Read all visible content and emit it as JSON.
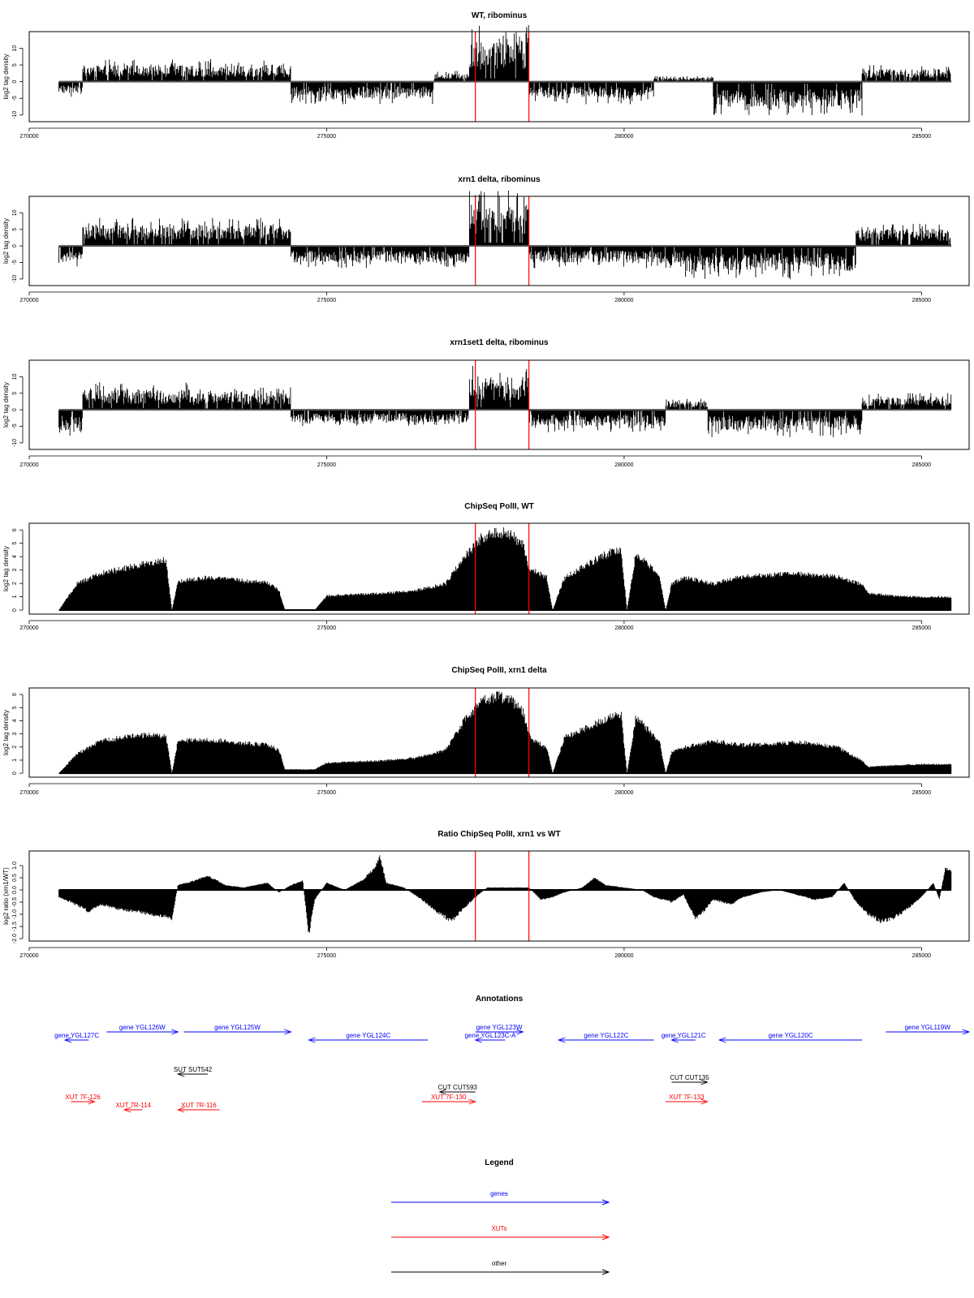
{
  "chart_data": [
    {
      "type": "bar",
      "title": "WT, ribominus",
      "ylabel": "log2 tag density",
      "xlim": [
        270000,
        285800
      ],
      "ylim": [
        -12,
        15
      ],
      "xticks": [
        "270000",
        "275000",
        "280000",
        "285000"
      ],
      "yticks": [
        "10",
        "5",
        "0",
        "-5",
        "-10"
      ],
      "markers": [
        277500,
        278400
      ],
      "segments": [
        {
          "x": [
            270500,
            270900
          ],
          "y": -3
        },
        {
          "x": [
            270900,
            272800
          ],
          "y": 4
        },
        {
          "x": [
            272800,
            274400
          ],
          "y": 4
        },
        {
          "x": [
            274400,
            276800
          ],
          "y": -4
        },
        {
          "x": [
            276800,
            277400
          ],
          "y": 2
        },
        {
          "x": [
            277400,
            278400
          ],
          "y": 10
        },
        {
          "x": [
            278400,
            280500
          ],
          "y": -4
        },
        {
          "x": [
            280500,
            281500
          ],
          "y": 1
        },
        {
          "x": [
            281500,
            284000
          ],
          "y": -6
        },
        {
          "x": [
            284000,
            285500
          ],
          "y": 3
        }
      ]
    },
    {
      "type": "bar",
      "title": "xrn1 delta, ribominus",
      "ylabel": "log2 tag density",
      "xlim": [
        270000,
        285800
      ],
      "ylim": [
        -12,
        15
      ],
      "xticks": [
        "270000",
        "275000",
        "280000",
        "285000"
      ],
      "yticks": [
        "10",
        "5",
        "0",
        "-5",
        "-10"
      ],
      "markers": [
        277500,
        278400
      ],
      "segments": [
        {
          "x": [
            270500,
            270900
          ],
          "y": -4
        },
        {
          "x": [
            270900,
            272700
          ],
          "y": 5
        },
        {
          "x": [
            272700,
            274400
          ],
          "y": 5
        },
        {
          "x": [
            274400,
            277400
          ],
          "y": -4
        },
        {
          "x": [
            277400,
            278400
          ],
          "y": 10
        },
        {
          "x": [
            278400,
            281000
          ],
          "y": -4
        },
        {
          "x": [
            281000,
            283900
          ],
          "y": -6
        },
        {
          "x": [
            283900,
            285500
          ],
          "y": 4
        }
      ]
    },
    {
      "type": "bar",
      "title": "xrn1set1 delta, ribominus",
      "ylabel": "log2 tag density",
      "xlim": [
        270000,
        285800
      ],
      "ylim": [
        -12,
        15
      ],
      "xticks": [
        "270000",
        "275000",
        "280000",
        "285000"
      ],
      "yticks": [
        "10",
        "5",
        "0",
        "-5",
        "-10"
      ],
      "markers": [
        277500,
        278400
      ],
      "segments": [
        {
          "x": [
            270500,
            270900
          ],
          "y": -5
        },
        {
          "x": [
            270900,
            272700
          ],
          "y": 5
        },
        {
          "x": [
            272700,
            274400
          ],
          "y": 4
        },
        {
          "x": [
            274400,
            277400
          ],
          "y": -3
        },
        {
          "x": [
            277400,
            278400
          ],
          "y": 8
        },
        {
          "x": [
            278400,
            280700
          ],
          "y": -4
        },
        {
          "x": [
            280700,
            281400
          ],
          "y": 2
        },
        {
          "x": [
            281400,
            284000
          ],
          "y": -5
        },
        {
          "x": [
            284000,
            285500
          ],
          "y": 3
        }
      ]
    },
    {
      "type": "area",
      "title": "ChipSeq PolII, WT",
      "ylabel": "log2 tag density",
      "xlim": [
        270000,
        285800
      ],
      "ylim": [
        -0.3,
        6.5
      ],
      "xticks": [
        "270000",
        "275000",
        "280000",
        "285000"
      ],
      "yticks": [
        "0",
        "1",
        "2",
        "3",
        "4",
        "5",
        "6"
      ],
      "markers": [
        277500,
        278400
      ],
      "x": [
        270500,
        270800,
        271200,
        271600,
        272000,
        272300,
        272400,
        272500,
        273000,
        273500,
        274000,
        274200,
        274300,
        274400,
        274800,
        275000,
        276000,
        276500,
        277000,
        277300,
        277600,
        277900,
        278100,
        278300,
        278400,
        278500,
        278700,
        278800,
        279000,
        279500,
        279800,
        279950,
        280050,
        280200,
        280400,
        280600,
        280700,
        280800,
        281000,
        281500,
        282000,
        283000,
        283600,
        284000,
        284100,
        284500,
        285000,
        285500
      ],
      "y": [
        0,
        2,
        2.8,
        3.2,
        3.6,
        3.8,
        0,
        2.2,
        2.5,
        2.3,
        2.1,
        1.5,
        0,
        0,
        0,
        1.1,
        1.3,
        1.5,
        2.0,
        4.0,
        5.5,
        6.0,
        5.8,
        5.0,
        3.2,
        3.0,
        2.5,
        0,
        2.5,
        3.8,
        4.5,
        4.6,
        0,
        4.4,
        3.5,
        2.5,
        0,
        2.0,
        2.5,
        2.0,
        2.6,
        2.8,
        2.5,
        2.0,
        1.3,
        1.1,
        1.0,
        1.0
      ]
    },
    {
      "type": "area",
      "title": "ChipSeq PolII, xrn1 delta",
      "ylabel": "log2 tag density",
      "xlim": [
        270000,
        285800
      ],
      "ylim": [
        -0.3,
        6.5
      ],
      "xticks": [
        "270000",
        "275000",
        "280000",
        "285000"
      ],
      "yticks": [
        "0",
        "1",
        "2",
        "3",
        "4",
        "5",
        "6"
      ],
      "markers": [
        277500,
        278400
      ],
      "x": [
        270500,
        270800,
        271200,
        271600,
        272000,
        272300,
        272400,
        272500,
        273000,
        273500,
        274000,
        274200,
        274300,
        274400,
        274800,
        275000,
        276000,
        276500,
        277000,
        277300,
        277600,
        277900,
        278100,
        278300,
        278400,
        278500,
        278700,
        278800,
        279000,
        279500,
        279800,
        279950,
        280050,
        280200,
        280400,
        280600,
        280700,
        280800,
        281000,
        281500,
        282000,
        283000,
        283600,
        284000,
        284100,
        284500,
        285000,
        285500
      ],
      "y": [
        0,
        1.5,
        2.5,
        2.8,
        3.0,
        2.9,
        0,
        2.5,
        2.6,
        2.4,
        2.2,
        1.8,
        0.3,
        0.3,
        0.3,
        0.8,
        1.0,
        1.2,
        1.8,
        4.0,
        5.6,
        6.0,
        5.7,
        4.8,
        3.0,
        2.5,
        2.0,
        0,
        2.8,
        3.8,
        4.4,
        4.6,
        0,
        4.4,
        3.4,
        2.4,
        0,
        1.6,
        2.0,
        2.5,
        2.2,
        2.4,
        2.0,
        1.0,
        0.5,
        0.6,
        0.7,
        0.7
      ]
    },
    {
      "type": "area",
      "title": "Ratio ChipSeq PolII, xrn1 vs WT",
      "ylabel": "log2 ratio (xrn1/WT)",
      "xlim": [
        270000,
        285800
      ],
      "ylim": [
        -2.1,
        1.6
      ],
      "xticks": [
        "270000",
        "275000",
        "280000",
        "285000"
      ],
      "yticks": [
        "1.0",
        "0.5",
        "0.0",
        "-0.5",
        "-1.0",
        "-1.5",
        "-2.0"
      ],
      "markers": [
        277500,
        278400
      ],
      "x": [
        270500,
        270700,
        271000,
        271200,
        271500,
        271800,
        272000,
        272300,
        272400,
        272500,
        272800,
        273000,
        273300,
        273600,
        274000,
        274200,
        274400,
        274600,
        274700,
        274800,
        275000,
        275300,
        275600,
        275800,
        275900,
        276000,
        276300,
        276600,
        276900,
        277100,
        277300,
        277500,
        277700,
        278000,
        278400,
        278600,
        278800,
        279000,
        279300,
        279500,
        279700,
        280000,
        280300,
        280500,
        280800,
        281000,
        281200,
        281300,
        281500,
        281800,
        282000,
        282300,
        282600,
        282900,
        283200,
        283500,
        283700,
        283900,
        284100,
        284300,
        284500,
        284700,
        285000,
        285200,
        285300,
        285400,
        285500
      ],
      "y": [
        -0.3,
        -0.5,
        -0.9,
        -0.6,
        -0.8,
        -0.9,
        -1.0,
        -1.1,
        -1.2,
        0.2,
        0.4,
        0.6,
        0.2,
        0.1,
        0.3,
        -0.1,
        0.2,
        0.4,
        -1.9,
        -0.4,
        0.3,
        0.0,
        0.4,
        0.9,
        1.4,
        0.3,
        0.1,
        -0.4,
        -1.0,
        -1.3,
        -0.8,
        -0.3,
        0.1,
        0.1,
        0.1,
        -0.4,
        -0.3,
        -0.1,
        0.1,
        0.5,
        0.2,
        0.1,
        0.0,
        -0.3,
        -0.5,
        -0.2,
        -1.2,
        -1.0,
        -0.4,
        -0.6,
        -0.3,
        -0.1,
        0.0,
        -0.2,
        -0.4,
        -0.3,
        0.3,
        -0.5,
        -1.0,
        -1.3,
        -1.2,
        -0.9,
        -0.3,
        0.3,
        -0.4,
        0.9,
        0.8
      ]
    }
  ],
  "annotations": {
    "title": "Annotations",
    "colors": {
      "genes": "#0000ff",
      "XUTs": "#ff0000",
      "other": "#000000"
    },
    "features": [
      {
        "label": "gene YGL127C",
        "category": "genes",
        "start": 270600,
        "end": 271000,
        "strand": "-",
        "row": 2
      },
      {
        "label": "gene YGL126W",
        "category": "genes",
        "start": 271300,
        "end": 272500,
        "strand": "+",
        "row": 1
      },
      {
        "label": "gene YGL125W",
        "category": "genes",
        "start": 272600,
        "end": 274400,
        "strand": "+",
        "row": 1
      },
      {
        "label": "gene YGL124C",
        "category": "genes",
        "start": 274700,
        "end": 276700,
        "strand": "-",
        "row": 3
      },
      {
        "label": "gene YGL123W",
        "category": "genes",
        "start": 277500,
        "end": 278300,
        "strand": "+",
        "row": 1
      },
      {
        "label": "gene YGL123C-A",
        "category": "genes",
        "start": 277500,
        "end": 278000,
        "strand": "-",
        "row": 2
      },
      {
        "label": "gene YGL122C",
        "category": "genes",
        "start": 278900,
        "end": 280500,
        "strand": "-",
        "row": 3
      },
      {
        "label": "gene YGL121C",
        "category": "genes",
        "start": 280800,
        "end": 281200,
        "strand": "-",
        "row": 3
      },
      {
        "label": "gene YGL120C",
        "category": "genes",
        "start": 281600,
        "end": 284000,
        "strand": "-",
        "row": 3
      },
      {
        "label": "gene YGL119W",
        "category": "genes",
        "start": 284400,
        "end": 286000,
        "strand": "+",
        "row": 1
      },
      {
        "label": "SUT SUT542",
        "category": "other",
        "start": 272500,
        "end": 273000,
        "strand": "-",
        "row": 4
      },
      {
        "label": "CUT CUT593",
        "category": "other",
        "start": 276900,
        "end": 277500,
        "strand": "-",
        "row": 6
      },
      {
        "label": "CUT CUT135",
        "category": "other",
        "start": 280800,
        "end": 281400,
        "strand": "+",
        "row": 5
      },
      {
        "label": "XUT 7F-126",
        "category": "XUTs",
        "start": 270700,
        "end": 271100,
        "strand": "+",
        "row": 7
      },
      {
        "label": "XUT 7R-114",
        "category": "XUTs",
        "start": 271600,
        "end": 271900,
        "strand": "-",
        "row": 8
      },
      {
        "label": "XUT 7R-116",
        "category": "XUTs",
        "start": 272500,
        "end": 273200,
        "strand": "-",
        "row": 8
      },
      {
        "label": "XUT 7F-130",
        "category": "XUTs",
        "start": 276600,
        "end": 277500,
        "strand": "+",
        "row": 7
      },
      {
        "label": "XUT 7F-133",
        "category": "XUTs",
        "start": 280700,
        "end": 281400,
        "strand": "+",
        "row": 7
      }
    ]
  },
  "legend": {
    "title": "Legend",
    "items": [
      {
        "label": "genes",
        "color": "#0000ff"
      },
      {
        "label": "XUTs",
        "color": "#ff0000"
      },
      {
        "label": "other",
        "color": "#000000"
      }
    ]
  }
}
